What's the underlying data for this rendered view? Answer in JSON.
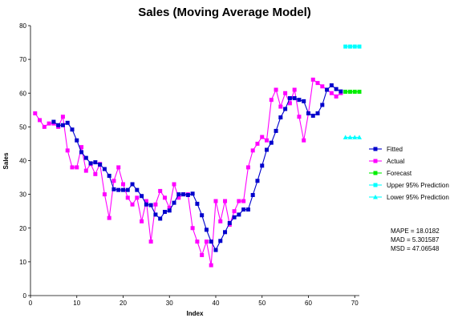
{
  "chart_data": {
    "type": "line",
    "title": "Sales (Moving Average Model)",
    "xlabel": "Index",
    "ylabel": "Sales",
    "xlim": [
      0,
      71
    ],
    "ylim": [
      0,
      80
    ],
    "xticks": [
      0,
      10,
      20,
      30,
      40,
      50,
      60,
      70
    ],
    "yticks": [
      0,
      10,
      20,
      30,
      40,
      50,
      60,
      70,
      80
    ],
    "grid": false,
    "legend_position": "right",
    "series": [
      {
        "name": "Fitted",
        "color": "#0000CC",
        "marker": "square",
        "x": [
          5,
          6,
          7,
          8,
          9,
          10,
          11,
          12,
          13,
          14,
          15,
          16,
          17,
          18,
          19,
          20,
          21,
          22,
          23,
          24,
          25,
          26,
          27,
          28,
          29,
          30,
          31,
          32,
          33,
          34,
          35,
          36,
          37,
          38,
          39,
          40,
          41,
          42,
          43,
          44,
          45,
          46,
          47,
          48,
          49,
          50,
          51,
          52,
          53,
          54,
          55,
          56,
          57,
          58,
          59,
          60,
          61,
          62,
          63,
          64,
          65,
          66,
          67
        ],
        "y": [
          51.5,
          50.5,
          50.5,
          51.2,
          49.2,
          46.0,
          42.5,
          40.8,
          39.2,
          39.5,
          38.8,
          37.5,
          35.5,
          31.5,
          31.3,
          31.3,
          31.3,
          33.0,
          31.3,
          29.5,
          27.0,
          26.8,
          24.0,
          22.8,
          24.8,
          25.2,
          27.5,
          30.0,
          30.0,
          29.8,
          30.2,
          27.2,
          23.8,
          19.5,
          16.0,
          13.5,
          16.2,
          18.8,
          21.5,
          23.2,
          24.0,
          25.5,
          25.5,
          29.8,
          34.0,
          38.5,
          43.2,
          45.3,
          48.8,
          52.8,
          55.3,
          58.5,
          58.5,
          58.0,
          57.6,
          54.0,
          53.3,
          54.0,
          56.5,
          61.0,
          62.3,
          61.2,
          60.5
        ]
      },
      {
        "name": "Actual",
        "color": "#FF00FF",
        "marker": "square",
        "x": [
          1,
          2,
          3,
          4,
          5,
          6,
          7,
          8,
          9,
          10,
          11,
          12,
          13,
          14,
          15,
          16,
          17,
          18,
          19,
          20,
          21,
          22,
          23,
          24,
          25,
          26,
          27,
          28,
          29,
          30,
          31,
          32,
          33,
          34,
          35,
          36,
          37,
          38,
          39,
          40,
          41,
          42,
          43,
          44,
          45,
          46,
          47,
          48,
          49,
          50,
          51,
          52,
          53,
          54,
          55,
          56,
          57,
          58,
          59,
          60,
          61,
          62,
          63,
          64,
          65,
          66,
          67
        ],
        "y": [
          54,
          52,
          50,
          51,
          51,
          50,
          53,
          43,
          38,
          38,
          44,
          37,
          39,
          36,
          39,
          30,
          23,
          34,
          38,
          33,
          29,
          27,
          29,
          22,
          28,
          16,
          27,
          31,
          29,
          26,
          33,
          29,
          30,
          30,
          20,
          16,
          12,
          16,
          9,
          28,
          22,
          28,
          21,
          25,
          28,
          28,
          38,
          43,
          45,
          47,
          46,
          58,
          61,
          56,
          60,
          57,
          61,
          53,
          46,
          54,
          64,
          63,
          62,
          61,
          60,
          59,
          60
        ]
      },
      {
        "name": "Forecast",
        "color": "#00EE00",
        "marker": "square",
        "x": [
          68,
          69,
          70,
          71
        ],
        "y": [
          60.4,
          60.4,
          60.4,
          60.4
        ]
      },
      {
        "name": "Upper 95% Prediction",
        "color": "#00FFFF",
        "marker": "square",
        "x": [
          68,
          69,
          70,
          71
        ],
        "y": [
          73.8,
          73.8,
          73.8,
          73.8
        ]
      },
      {
        "name": "Lower 95% Prediction",
        "color": "#00FFFF",
        "marker": "triangle",
        "x": [
          68,
          69,
          70,
          71
        ],
        "y": [
          46.9,
          46.9,
          46.9,
          46.9
        ]
      }
    ],
    "stats": [
      "MAPE = 18.0182",
      "MAD = 5.301587",
      "MSD = 47.06548"
    ]
  }
}
